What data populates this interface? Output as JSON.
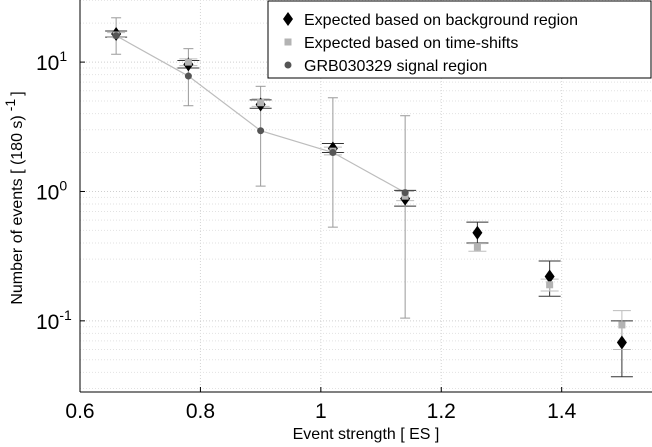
{
  "chart_data": {
    "type": "scatter",
    "x_label": "Event strength [ ES ]",
    "y_label": "Number of events [ (180 s)",
    "y_label_sup": "-1",
    "x_lim": [
      0.6,
      1.55
    ],
    "y_lim_log10": [
      -1.55,
      1.48
    ],
    "y_scale": "log",
    "grid": true,
    "legend_position": "top-right",
    "x_ticks": [
      {
        "value": 0.6,
        "label": "0.6"
      },
      {
        "value": 0.8,
        "label": "0.8"
      },
      {
        "value": 1.0,
        "label": "1"
      },
      {
        "value": 1.2,
        "label": "1.2"
      },
      {
        "value": 1.4,
        "label": "1.4"
      }
    ],
    "y_ticks": [
      {
        "exp": 1,
        "base": "10",
        "sup": "1"
      },
      {
        "exp": 0,
        "base": "10",
        "sup": "0"
      },
      {
        "exp": -1,
        "base": "10",
        "sup": "-1"
      }
    ],
    "series": [
      {
        "name": "Expected based on background region",
        "marker": "diamond",
        "color": "#000000",
        "points": [
          {
            "x": 0.66,
            "y": 16.5,
            "lo": 15.6,
            "hi": 17.4
          },
          {
            "x": 0.78,
            "y": 9.6,
            "lo": 9.0,
            "hi": 10.3
          },
          {
            "x": 0.9,
            "y": 4.7,
            "lo": 4.4,
            "hi": 5.1
          },
          {
            "x": 1.02,
            "y": 2.15,
            "lo": 2.0,
            "hi": 2.35
          },
          {
            "x": 1.14,
            "y": 0.88,
            "lo": 0.77,
            "hi": 1.02
          },
          {
            "x": 1.26,
            "y": 0.48,
            "lo": 0.4,
            "hi": 0.58
          },
          {
            "x": 1.38,
            "y": 0.22,
            "lo": 0.155,
            "hi": 0.29
          },
          {
            "x": 1.5,
            "y": 0.068,
            "lo": 0.037,
            "hi": 0.1
          }
        ]
      },
      {
        "name": "Expected based on time-shifts",
        "marker": "square",
        "color": "#b3b3b3",
        "points": [
          {
            "x": 0.66,
            "y": 16.2,
            "lo": 15.5,
            "hi": 16.9
          },
          {
            "x": 0.78,
            "y": 10.0,
            "lo": 9.4,
            "hi": 10.6
          },
          {
            "x": 0.9,
            "y": 4.85,
            "lo": 4.55,
            "hi": 5.2
          },
          {
            "x": 1.02,
            "y": 2.05,
            "lo": 1.92,
            "hi": 2.2
          },
          {
            "x": 1.14,
            "y": 0.92,
            "lo": 0.85,
            "hi": 1.0
          },
          {
            "x": 1.26,
            "y": 0.37,
            "lo": 0.345,
            "hi": 0.395
          },
          {
            "x": 1.38,
            "y": 0.19,
            "lo": 0.17,
            "hi": 0.21
          },
          {
            "x": 1.5,
            "y": 0.093,
            "lo": 0.06,
            "hi": 0.12
          }
        ]
      },
      {
        "name": "GRB030329 signal region",
        "marker": "circle",
        "color": "#555555",
        "line_color": "#bdbdbd",
        "points": [
          {
            "x": 0.66,
            "y": 16.0,
            "lo": 11.5,
            "hi": 22.0
          },
          {
            "x": 0.78,
            "y": 7.8,
            "lo": 4.6,
            "hi": 12.7
          },
          {
            "x": 0.9,
            "y": 2.95,
            "lo": 1.1,
            "hi": 6.5
          },
          {
            "x": 1.02,
            "y": 2.0,
            "lo": 0.53,
            "hi": 5.3
          },
          {
            "x": 1.14,
            "y": 0.98,
            "lo": 0.105,
            "hi": 3.85
          }
        ]
      }
    ]
  }
}
